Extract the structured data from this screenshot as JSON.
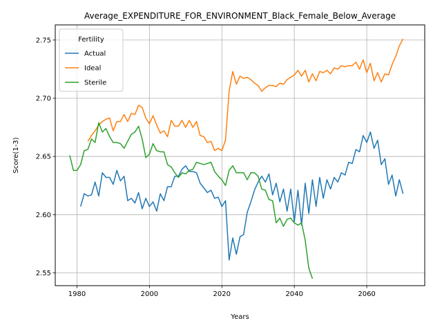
{
  "chart_data": {
    "type": "line",
    "title": "Average_EXPENDITURE_FOR_ENVIRONMENT_Black_Female_Below_Average",
    "xlabel": "Years",
    "ylabel": "Score(1-3)",
    "xlim": [
      1974,
      2076
    ],
    "ylim": [
      2.539,
      2.763
    ],
    "x_ticks": [
      1980,
      2000,
      2020,
      2040,
      2060
    ],
    "y_ticks": [
      2.55,
      2.6,
      2.65,
      2.7,
      2.75
    ],
    "x_tick_labels": [
      "1980",
      "2000",
      "2020",
      "2040",
      "2060"
    ],
    "y_tick_labels": [
      "2.55",
      "2.60",
      "2.65",
      "2.70",
      "2.75"
    ],
    "grid": true,
    "legend": {
      "title": "Fertility",
      "placement": "top-left"
    },
    "series": [
      {
        "name": "Actual",
        "color": "#1f77b4",
        "x": [
          1981,
          1982,
          1983,
          1984,
          1985,
          1986,
          1987,
          1988,
          1989,
          1990,
          1991,
          1992,
          1993,
          1994,
          1995,
          1996,
          1997,
          1998,
          1999,
          2000,
          2001,
          2002,
          2003,
          2004,
          2005,
          2006,
          2007,
          2008,
          2009,
          2010,
          2011,
          2012,
          2013,
          2014,
          2015,
          2016,
          2017,
          2018,
          2019,
          2020,
          2021,
          2022,
          2023,
          2024,
          2025,
          2026,
          2027,
          2028,
          2029,
          2030,
          2031,
          2032,
          2033,
          2034,
          2035,
          2036,
          2037,
          2038,
          2039,
          2040,
          2041,
          2042,
          2043,
          2044,
          2045,
          2046,
          2047,
          2048,
          2049,
          2050,
          2051,
          2052,
          2053,
          2054,
          2055,
          2056,
          2057,
          2058,
          2059,
          2060,
          2061,
          2062,
          2063,
          2064,
          2065,
          2066,
          2067,
          2068,
          2069,
          2070
        ],
        "y": [
          2.607,
          2.618,
          2.616,
          2.617,
          2.628,
          2.616,
          2.636,
          2.632,
          2.632,
          2.626,
          2.638,
          2.629,
          2.633,
          2.612,
          2.614,
          2.61,
          2.619,
          2.605,
          2.614,
          2.607,
          2.611,
          2.603,
          2.618,
          2.612,
          2.624,
          2.624,
          2.633,
          2.633,
          2.639,
          2.642,
          2.637,
          2.637,
          2.636,
          2.627,
          2.623,
          2.619,
          2.621,
          2.614,
          2.615,
          2.607,
          2.612,
          2.561,
          2.58,
          2.566,
          2.581,
          2.583,
          2.602,
          2.611,
          2.621,
          2.628,
          2.633,
          2.628,
          2.635,
          2.617,
          2.627,
          2.611,
          2.622,
          2.603,
          2.622,
          2.594,
          2.621,
          2.591,
          2.627,
          2.601,
          2.63,
          2.607,
          2.632,
          2.614,
          2.63,
          2.622,
          2.632,
          2.628,
          2.636,
          2.634,
          2.645,
          2.644,
          2.656,
          2.654,
          2.668,
          2.662,
          2.671,
          2.657,
          2.664,
          2.643,
          2.648,
          2.626,
          2.634,
          2.616,
          2.63,
          2.618
        ]
      },
      {
        "name": "Ideal",
        "color": "#ff7f0e",
        "x": [
          1983,
          1984,
          1985,
          1986,
          1987,
          1988,
          1989,
          1990,
          1991,
          1992,
          1993,
          1994,
          1995,
          1996,
          1997,
          1998,
          1999,
          2000,
          2001,
          2002,
          2003,
          2004,
          2005,
          2006,
          2007,
          2008,
          2009,
          2010,
          2011,
          2012,
          2013,
          2014,
          2015,
          2016,
          2017,
          2018,
          2019,
          2020,
          2021,
          2022,
          2023,
          2024,
          2025,
          2026,
          2027,
          2028,
          2029,
          2030,
          2031,
          2032,
          2033,
          2034,
          2035,
          2036,
          2037,
          2038,
          2039,
          2040,
          2041,
          2042,
          2043,
          2044,
          2045,
          2046,
          2047,
          2048,
          2049,
          2050,
          2051,
          2052,
          2053,
          2054,
          2055,
          2056,
          2057,
          2058,
          2059,
          2060,
          2061,
          2062,
          2063,
          2064,
          2065,
          2066,
          2067,
          2068,
          2069,
          2070
        ],
        "y": [
          2.663,
          2.668,
          2.672,
          2.677,
          2.68,
          2.682,
          2.683,
          2.672,
          2.68,
          2.68,
          2.686,
          2.68,
          2.687,
          2.686,
          2.694,
          2.692,
          2.683,
          2.678,
          2.685,
          2.677,
          2.67,
          2.672,
          2.667,
          2.681,
          2.676,
          2.676,
          2.681,
          2.675,
          2.681,
          2.675,
          2.68,
          2.668,
          2.667,
          2.662,
          2.663,
          2.655,
          2.657,
          2.655,
          2.664,
          2.706,
          2.723,
          2.712,
          2.719,
          2.717,
          2.718,
          2.716,
          2.713,
          2.711,
          2.706,
          2.709,
          2.711,
          2.711,
          2.71,
          2.713,
          2.712,
          2.716,
          2.718,
          2.72,
          2.724,
          2.719,
          2.724,
          2.714,
          2.721,
          2.715,
          2.723,
          2.722,
          2.724,
          2.721,
          2.726,
          2.725,
          2.728,
          2.727,
          2.728,
          2.728,
          2.731,
          2.725,
          2.733,
          2.722,
          2.73,
          2.715,
          2.722,
          2.714,
          2.721,
          2.72,
          2.729,
          2.736,
          2.745,
          2.751
        ]
      },
      {
        "name": "Sterile",
        "color": "#2ca02c",
        "x": [
          1978,
          1979,
          1980,
          1981,
          1982,
          1983,
          1984,
          1985,
          1986,
          1987,
          1988,
          1989,
          1990,
          1991,
          1992,
          1993,
          1994,
          1995,
          1996,
          1997,
          1998,
          1999,
          2000,
          2001,
          2002,
          2003,
          2004,
          2005,
          2006,
          2007,
          2008,
          2009,
          2010,
          2011,
          2012,
          2013,
          2014,
          2015,
          2016,
          2017,
          2018,
          2019,
          2020,
          2021,
          2022,
          2023,
          2024,
          2025,
          2026,
          2027,
          2028,
          2029,
          2030,
          2031,
          2032,
          2033,
          2034,
          2035,
          2036,
          2037,
          2038,
          2039,
          2040,
          2041,
          2042,
          2043,
          2044,
          2045
        ],
        "y": [
          2.651,
          2.638,
          2.638,
          2.643,
          2.655,
          2.656,
          2.665,
          2.662,
          2.679,
          2.671,
          2.674,
          2.667,
          2.662,
          2.662,
          2.661,
          2.657,
          2.663,
          2.669,
          2.671,
          2.676,
          2.665,
          2.649,
          2.652,
          2.661,
          2.655,
          2.654,
          2.654,
          2.643,
          2.641,
          2.636,
          2.632,
          2.636,
          2.635,
          2.638,
          2.639,
          2.645,
          2.644,
          2.643,
          2.644,
          2.645,
          2.637,
          2.633,
          2.63,
          2.625,
          2.638,
          2.642,
          2.636,
          2.636,
          2.636,
          2.63,
          2.636,
          2.636,
          2.633,
          2.622,
          2.621,
          2.613,
          2.612,
          2.593,
          2.597,
          2.59,
          2.596,
          2.597,
          2.593,
          2.591,
          2.593,
          2.578,
          2.554,
          2.545
        ]
      }
    ]
  }
}
